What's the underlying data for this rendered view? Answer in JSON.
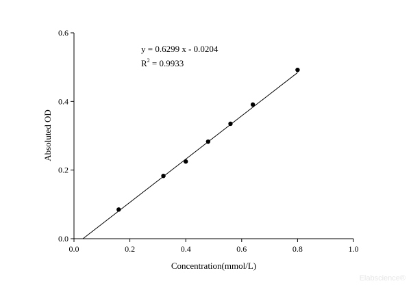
{
  "chart_data": {
    "type": "scatter",
    "x_label": "Concentration(mmol/L)",
    "y_label": "Absoluted OD",
    "x": [
      0.16,
      0.32,
      0.4,
      0.48,
      0.56,
      0.64,
      0.8
    ],
    "values": [
      0.085,
      0.183,
      0.225,
      0.283,
      0.335,
      0.391,
      0.492
    ],
    "color": "#000000",
    "fit_line": {
      "x": [
        0.032,
        0.8
      ],
      "values": [
        0,
        0.484
      ]
    },
    "equation": "y = 0.6299 x - 0.0204",
    "r2": {
      "base": "R",
      "sup": "2",
      "text": " = 0.9933"
    },
    "xlim": [
      0,
      1.0
    ],
    "ylim": [
      0,
      0.6
    ],
    "xticks": [
      {
        "value": 0,
        "label": "0.0"
      },
      0.2,
      0.4,
      0.6,
      0.8,
      {
        "value": 1.0,
        "label": "1.0"
      }
    ],
    "yticks": [
      {
        "value": 0,
        "label": "0.0"
      },
      0.2,
      0.4,
      0.6
    ],
    "watermark": "Elabscience®"
  }
}
